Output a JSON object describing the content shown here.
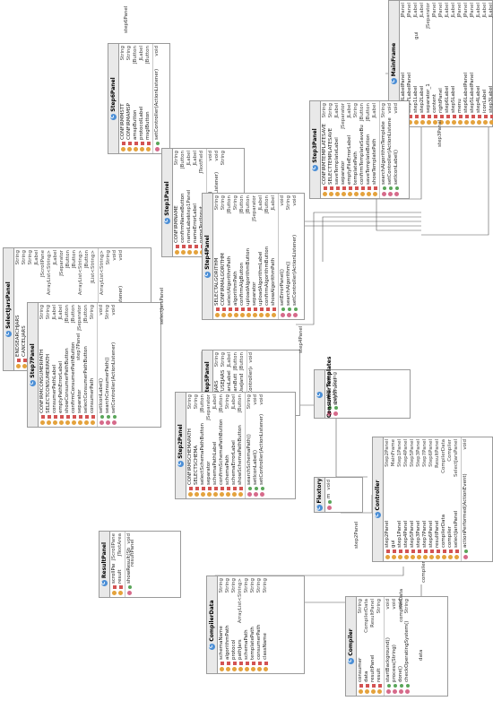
{
  "classes": {
    "mainframe": {
      "name": "MainFrame",
      "fields": [
        [
          "step3LabelPanel",
          "JPanel"
        ],
        [
          "step7LabelPanel",
          "JPanel"
        ],
        [
          "step1Label",
          "JLabel"
        ],
        [
          "step2Label",
          "JLabel"
        ],
        [
          "separator_1",
          "JSeparator"
        ],
        [
          "content",
          "JPanel"
        ],
        [
          "rightPanel",
          "JPanel"
        ],
        [
          "step6Label",
          "JLabel"
        ],
        [
          "step5Label",
          "JLabel"
        ],
        [
          "menu",
          "JPanel"
        ],
        [
          "step6LabelPanel",
          "JPanel"
        ],
        [
          "step5LabelPanel",
          "JPanel"
        ],
        [
          "step4Label",
          "JLabel"
        ],
        [
          "iconLabel",
          "JLabel"
        ],
        [
          "step3Label",
          "JLabel"
        ],
        [
          "step2LabelPanel",
          "JPanel"
        ],
        [
          "step1LabelPanel",
          "JPanel"
        ],
        [
          "step7Label",
          "JLabel"
        ]
      ],
      "methods": [
        [
          "changeStep(int)",
          "void"
        ],
        [
          "changePanel(JPanel)",
          "void"
        ]
      ]
    },
    "step6": {
      "name": "Step6Panel",
      "fields": [
        [
          "CONFIRMMSTT",
          "String"
        ],
        [
          "CONFIRMAMSP",
          "String"
        ],
        [
          "amspButton",
          "JButton"
        ],
        [
          "protocolLabel",
          "JLabel"
        ],
        [
          "msglButton",
          "JButton"
        ]
      ],
      "methods": [
        [
          "setController(ActionListener)",
          "void"
        ]
      ]
    },
    "step3": {
      "name": "Step3Panel",
      "fields": [
        [
          "CONFIRMTEMPLATESAVE",
          "String"
        ],
        [
          "SELECTTEMPLATESAVE",
          "String"
        ],
        [
          "saveTemplateLabel",
          "JLabel"
        ],
        [
          "separator",
          "JSeparator"
        ],
        [
          "emptyFileErrorLabel",
          "JLabel"
        ],
        [
          "templatePath",
          "String"
        ],
        [
          "confirmTemplateSaveButton",
          "JButton"
        ],
        [
          "saveTemplateButton",
          "JButton"
        ],
        [
          "showTemplatePath",
          "JLabel"
        ]
      ],
      "methods": [
        [
          "searchAlgorithmTemplate()",
          "String"
        ],
        [
          "setController(ActionListener)",
          "void"
        ],
        [
          "setIconLabel()",
          "void"
        ]
      ]
    },
    "step1": {
      "name": "Step1Panel",
      "fields": [
        [
          "CONFIRMNAME",
          "String"
        ],
        [
          "confirmNameButton",
          "JButton"
        ],
        [
          "nameLabel",
          "JLabel"
        ],
        [
          "nameErrorLabel",
          "JLabel"
        ],
        [
          "nameTextInput",
          "JTextField"
        ]
      ],
      "methods": [
        [
          "setErrorLabel(String)",
          "void"
        ],
        [
          "setController(ActionListener)",
          "void"
        ],
        [
          "getAlgName()",
          "String"
        ]
      ]
    },
    "step4": {
      "name": "Step4Panel",
      "fields": [
        [
          "SELECTALGORITHM",
          "String"
        ],
        [
          "CONFIRMALGORITHM",
          "String"
        ],
        [
          "selectAlgorithmPath",
          "JButton"
        ],
        [
          "algorithmPath",
          "String"
        ],
        [
          "confirmAlgButton",
          "JButton"
        ],
        [
          "uploadAlgorithmButton",
          "JButton"
        ],
        [
          "separator",
          "JSeparator"
        ],
        [
          "uploadAlgorithmLabel",
          "JLabel"
        ],
        [
          "confirmAlgorithmButton",
          "JButton"
        ],
        [
          "showAlgorithmPath",
          "JLabel"
        ]
      ],
      "methods": [
        [
          "setErrorPanel()",
          "void"
        ],
        [
          "searchAlgorithm()",
          "String"
        ],
        [
          "setController(ActionListener)",
          "void"
        ]
      ]
    },
    "selectjars": {
      "name": "SelectJarsPanel",
      "fields": [
        [
          "ENDSEARCHJARS",
          "String"
        ],
        [
          "CANCELJARS",
          "String"
        ],
        [
          "SEARCHJARS",
          "String"
        ],
        [
          "jarsLabel",
          "JLabel"
        ],
        [
          "scrollJars",
          "JScrollPane"
        ],
        [
          "pathJars",
          "ArrayList<String>"
        ],
        [
          "searchJarsLabel",
          "JLabel"
        ],
        [
          "separator",
          "JSeparator"
        ],
        [
          "searchJarsButton",
          "JButton"
        ],
        [
          "endSearchButton",
          "JButton"
        ],
        [
          "pathJarsTemp",
          "ArrayList<String>"
        ],
        [
          "cancelJarsButton",
          "JButton"
        ],
        [
          "list",
          "JList<String>"
        ]
      ],
      "methods": [
        [
          "getJars()",
          "ArrayList<String>"
        ],
        [
          "chooseJar()",
          "String"
        ],
        [
          "cancelJarsSelection()",
          "void"
        ],
        [
          "setController(ActionListener)",
          "void"
        ]
      ]
    },
    "step5": {
      "name": "Step5Panel",
      "fields": [
        [
          "USEJARS",
          "String"
        ],
        [
          "NOTUSEJARS",
          "String"
        ],
        [
          "useJarsLabel",
          "JLabel"
        ],
        [
          "useJarsButton",
          "JButton"
        ],
        [
          "notUseJarsButton",
          "JButton"
        ]
      ],
      "methods": [
        [
          "setController(ActionListener)",
          "void"
        ]
      ]
    },
    "consumer": {
      "name": "ConsumerTemplates",
      "fields": [],
      "methods": [
        [
          "getMSTT(String, String)",
          "String"
        ],
        [
          "getAMSP(String, String)",
          "String"
        ]
      ]
    },
    "step7": {
      "name": "Step7Panel",
      "fields": [
        [
          "CONFIRMCONSUMERPATH",
          "String"
        ],
        [
          "SELECTCONSUMERPATH",
          "String"
        ],
        [
          "consumerPathLabel",
          "JLabel"
        ],
        [
          "emptyPathErrorLabel",
          "JLabel"
        ],
        [
          "showConsumerPathButton",
          "JButton"
        ],
        [
          "confirmConsumerPathButton",
          "JButton"
        ],
        [
          "separator",
          "JSeparator"
        ],
        [
          "selectConsumerPathButton",
          "JButton"
        ],
        [
          "consumerPath",
          "String"
        ]
      ],
      "methods": [
        [
          "setIconLabel()",
          "void"
        ],
        [
          "searchConsumerPath()",
          "String"
        ],
        [
          "setController(ActionListener)",
          "void"
        ]
      ]
    },
    "step2": {
      "name": "Step2Panel",
      "fields": [
        [
          "CONFIRMSCHEMAPATH",
          "String"
        ],
        [
          "SELECTSCHEMA",
          "String"
        ],
        [
          "selectSchemaPathButton",
          "JButton"
        ],
        [
          "separator",
          "JSeparator"
        ],
        [
          "schemaPathLabel",
          "JLabel"
        ],
        [
          "confirmSchemaPathButton",
          "JButton"
        ],
        [
          "schemaPath",
          "String"
        ],
        [
          "schemaErrorLabel",
          "JLabel"
        ],
        [
          "showSchemaPathButton",
          "JButton"
        ]
      ],
      "methods": [
        [
          "searchSchemaPath()",
          "String"
        ],
        [
          "setIconLabel()",
          "void"
        ],
        [
          "setController(ActionListener)",
          "void"
        ]
      ]
    },
    "flextory": {
      "name": "Flextory",
      "fields": [],
      "methods": [
        [
          "main(String[])",
          "void"
        ]
      ]
    },
    "controller": {
      "name": "Controller",
      "fields": [
        [
          "step2Panel",
          "Step2Panel"
        ],
        [
          "gui",
          "MainFrame"
        ],
        [
          "step1Panel",
          "Step1Panel"
        ],
        [
          "step4Panel",
          "Step4Panel"
        ],
        [
          "step5Panel",
          "Step5Panel"
        ],
        [
          "step3Panel",
          "Step3Panel"
        ],
        [
          "step7Panel",
          "Step7Panel"
        ],
        [
          "step6Panel",
          "Step6Panel"
        ],
        [
          "resultPanel",
          "ResultPanel"
        ],
        [
          "compilerData",
          "CompilerData"
        ],
        [
          "compiler",
          "Compiler"
        ],
        [
          "selectJarsPanel",
          "SelectJarsPanel"
        ]
      ],
      "methods": [
        [
          "actionPerformed(ActionEvent)",
          "void"
        ]
      ]
    },
    "result": {
      "name": "ResultPanel",
      "fields": [
        [
          "scrollPane",
          "JScrollPane"
        ],
        [
          "result",
          "JTextArea"
        ]
      ],
      "methods": [
        [
          "showResult(String)",
          "void"
        ]
      ]
    },
    "compilerdata": {
      "name": "CompilerData",
      "fields": [
        [
          "schemaName",
          "String"
        ],
        [
          "algorithmPath",
          "String"
        ],
        [
          "protocol",
          "String"
        ],
        [
          "pathJars",
          "ArrayList<String>"
        ],
        [
          "schemaPath",
          "String"
        ],
        [
          "templatePath",
          "String"
        ],
        [
          "consumerPath",
          "String"
        ],
        [
          "className",
          "String"
        ]
      ],
      "methods": []
    },
    "compiler": {
      "name": "Compiler",
      "fields": [
        [
          "consumer",
          "String"
        ],
        [
          "data",
          "CompilerData"
        ],
        [
          "resultPanel",
          "ResultPanel"
        ],
        [
          "result",
          "String"
        ]
      ],
      "methods": [
        [
          "startBackground()",
          "void"
        ],
        [
          "process(String)",
          "void"
        ],
        [
          "done()",
          "void"
        ],
        [
          "checkOperatingSystem()",
          "String"
        ]
      ]
    }
  },
  "edge_labels": {
    "step6panel_top": "step6Panel",
    "gui": "gui",
    "step3panel": "step3Panel",
    "step1panel": "step1Panel",
    "selectjarspanel": "selectJarsPanel",
    "step4panel": "step4Panel",
    "step5panel": "step5Panel",
    "step7panel": "step7Panel",
    "step2panel": "step2Panel",
    "resultpanel": "resultPanel",
    "compilerdata": "compilerData",
    "data": "data",
    "compiler": "compiler",
    "one": "1",
    "star": "*"
  }
}
